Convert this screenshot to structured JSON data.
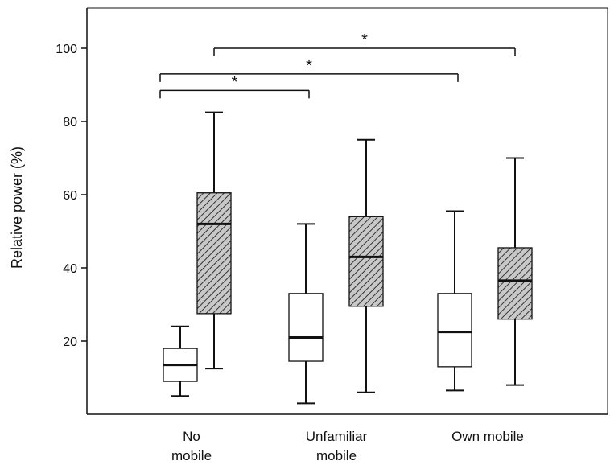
{
  "chart_data": {
    "type": "box",
    "title": "",
    "xlabel": "",
    "ylabel": "Relative power (%)",
    "ylim": [
      0,
      110
    ],
    "yticks": [
      20,
      40,
      60,
      80,
      100
    ],
    "categories": [
      "No mobile",
      "Unfamiliar mobile",
      "Own mobile"
    ],
    "category_label_lines": [
      [
        "No",
        "mobile"
      ],
      [
        "Unfamiliar",
        "mobile"
      ],
      [
        "Own mobile"
      ]
    ],
    "series": [
      {
        "fill": "plain",
        "boxes": [
          {
            "min": 5,
            "q1": 9,
            "median": 13.5,
            "q3": 18,
            "max": 24
          },
          {
            "min": 3,
            "q1": 14.5,
            "median": 21,
            "q3": 33,
            "max": 52
          },
          {
            "min": 6.5,
            "q1": 13,
            "median": 22.5,
            "q3": 33,
            "max": 55.5
          }
        ]
      },
      {
        "fill": "hatched",
        "boxes": [
          {
            "min": 12.5,
            "q1": 27.5,
            "median": 52,
            "q3": 60.5,
            "max": 82.5
          },
          {
            "min": 6,
            "q1": 29.5,
            "median": 43,
            "q3": 54,
            "max": 75
          },
          {
            "min": 8,
            "q1": 26,
            "median": 36.5,
            "q3": 45.5,
            "max": 70
          }
        ]
      }
    ],
    "significance": [
      {
        "label": "*",
        "y": 100,
        "from": "No mobile (hatched)",
        "to": "Own mobile (plain)"
      },
      {
        "label": "*",
        "y": 93,
        "from": "No mobile (plain)",
        "to": "Own mobile (plain)"
      },
      {
        "label": "*",
        "y": 88.5,
        "from": "No mobile (plain)",
        "to": "Unfamiliar mobile (plain)"
      }
    ],
    "grid": false,
    "legend": "none",
    "colors": {
      "stroke": "#111111",
      "box_fill": "#ffffff",
      "hatch_background": "#c8c8c8"
    }
  }
}
